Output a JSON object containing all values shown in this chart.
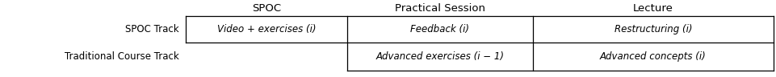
{
  "col_headers": [
    "SPOC",
    "Practical Session",
    "Lecture"
  ],
  "row_labels": [
    "SPOC Track",
    "Traditional Course Track"
  ],
  "cells": [
    [
      "Video + exercises (i)",
      "Feedback (i)",
      "Restructuring (i)"
    ],
    [
      "",
      "Advanced exercises (i − 1)",
      "Advanced concepts (i)"
    ]
  ],
  "background_color": "#ffffff",
  "border_color": "#000000",
  "header_fontsize": 9.5,
  "cell_fontsize": 8.5,
  "row_label_fontsize": 8.5
}
